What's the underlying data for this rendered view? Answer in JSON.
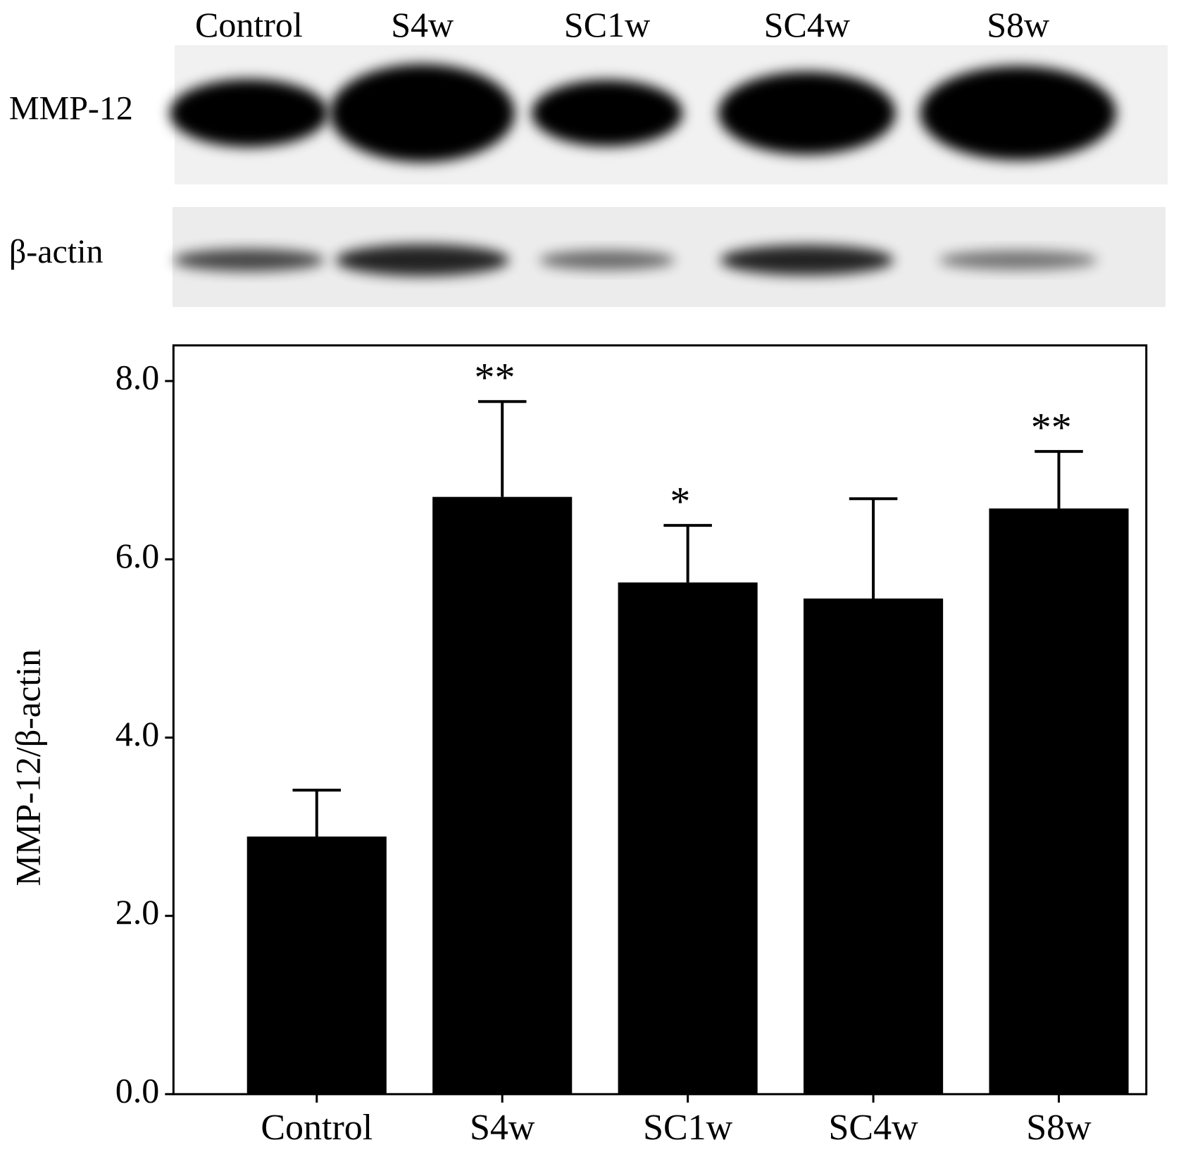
{
  "blot": {
    "lane_labels": [
      "Control",
      "S4w",
      "SC1w",
      "SC4w",
      "S8w"
    ],
    "row_labels": [
      "MMP-12",
      "β-actin"
    ]
  },
  "chart_data": {
    "type": "bar",
    "y_label": "MMP-12/β-actin",
    "categories": [
      "Control",
      "S4w",
      "SC1w",
      "SC4w",
      "S8w"
    ],
    "values": [
      2.89,
      6.7,
      5.74,
      5.56,
      6.57
    ],
    "errors": [
      0.52,
      1.07,
      0.64,
      1.12,
      0.64
    ],
    "annotations": [
      {
        "category": 1,
        "text": "**"
      },
      {
        "category": 2,
        "text": "*"
      },
      {
        "category": 4,
        "text": "**"
      }
    ],
    "color": "#000000",
    "ylim": [
      0,
      8.4
    ],
    "yticks": [
      {
        "value": 0,
        "label": "0.0"
      },
      {
        "value": 2,
        "label": "2.0"
      },
      {
        "value": 4,
        "label": "4.0"
      },
      {
        "value": 6,
        "label": "6.0"
      },
      {
        "value": 8,
        "label": "8.0"
      }
    ]
  }
}
